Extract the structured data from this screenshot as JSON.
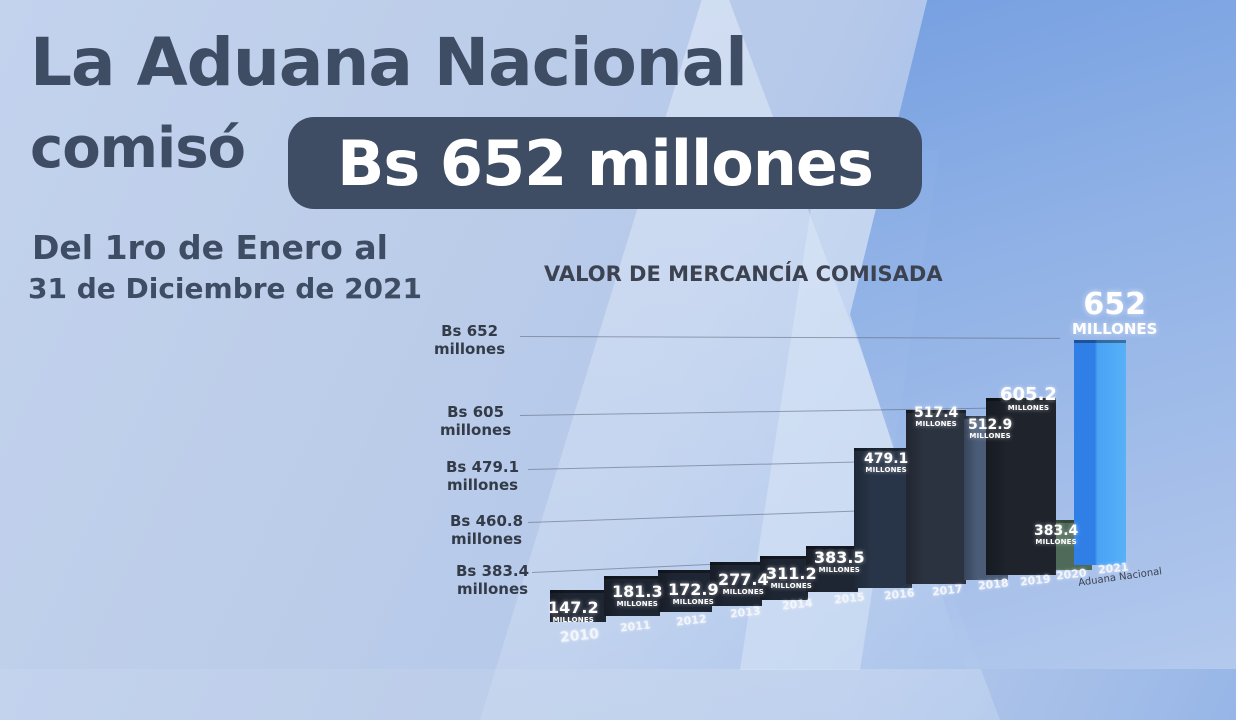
{
  "headline": {
    "line1": "La Aduana Nacional",
    "line2_prefix": "comisó",
    "highlight": "Bs 652 millones"
  },
  "period": {
    "line1": "Del 1ro de Enero al",
    "line2": "31 de Diciembre de 2021"
  },
  "source_label": "Aduana Nacional",
  "chart_data": {
    "type": "bar",
    "title": "VALOR DE MERCANCÍA COMISADA",
    "xlabel": "",
    "ylabel": "",
    "unit_label": "MILLONES",
    "categories": [
      "2010",
      "2011",
      "2012",
      "2013",
      "2014",
      "2015",
      "2016",
      "2017",
      "2018",
      "2019",
      "2020",
      "2021"
    ],
    "values": [
      147.2,
      181.3,
      172.9,
      277.4,
      311.2,
      383.5,
      479.1,
      517.4,
      512.9,
      605.2,
      383.4,
      652
    ],
    "value_labels": [
      "147.2",
      "181.3",
      "172.9",
      "277.4",
      "311.2",
      "383.5",
      "479.1",
      "517.4",
      "512.9",
      "605.2",
      "383.4",
      "652"
    ],
    "y_reference_lines": [
      {
        "value": 652,
        "label_line1": "Bs 652",
        "label_line2": "millones"
      },
      {
        "value": 605,
        "label_line1": "Bs 605",
        "label_line2": "millones"
      },
      {
        "value": 479.1,
        "label_line1": "Bs 479.1",
        "label_line2": "millones"
      },
      {
        "value": 460.8,
        "label_line1": "Bs 460.8",
        "label_line2": "millones"
      },
      {
        "value": 383.4,
        "label_line1": "Bs 383.4",
        "label_line2": "millones"
      }
    ],
    "highlight_category": "2021",
    "colors": {
      "dark_bars": "#1f2633",
      "bar_2016": "#283548",
      "bar_2017": "#2c3340",
      "bar_2018": "#4a5c78",
      "bar_2019": "#1e232c",
      "bar_2020": "#4f6a58",
      "bar_2021": "#3a8ef0"
    },
    "grid": true,
    "legend": "none"
  }
}
